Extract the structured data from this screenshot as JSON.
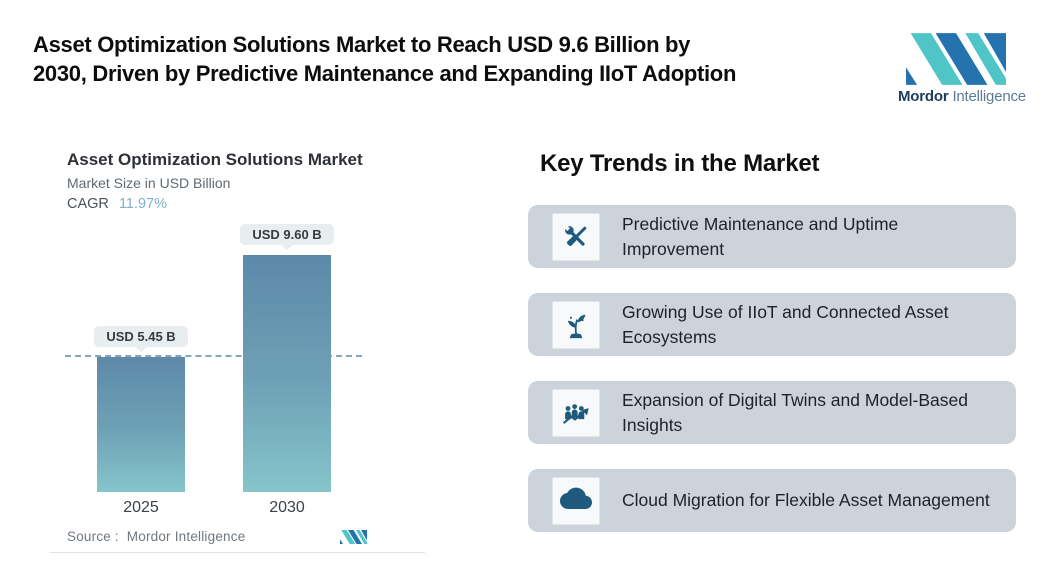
{
  "header": {
    "title_lines": [
      "Asset Optimization Solutions Market to Reach USD 9.6 Billion by",
      "2030, Driven by Predictive Maintenance and Expanding IIoT Adoption"
    ]
  },
  "brand": {
    "name_primary": "Mordor",
    "name_secondary": "Intelligence",
    "logo_icon": "mordor-intelligence-monogram",
    "colors": {
      "blue": "#2473ae",
      "teal": "#4fc5c8"
    }
  },
  "chart_data": {
    "type": "bar",
    "title": "Asset Optimization Solutions Market",
    "subtitle": "Market Size in USD Billion",
    "cagr_label": "CAGR",
    "cagr_value": "11.97%",
    "categories": [
      "2025",
      "2030"
    ],
    "values": [
      5.45,
      9.6
    ],
    "bar_labels": [
      "USD 5.45 B",
      "USD 9.60 B"
    ],
    "unit": "USD Billion",
    "ylim": [
      0,
      9.6
    ],
    "grid": false,
    "legend": "none",
    "reference_line": {
      "value": 5.45,
      "style": "dashed",
      "color": "#87a5ba"
    },
    "bar_gradient_top": "#5d89a9",
    "bar_gradient_bottom": "#85c5cb",
    "source_label": "Source :",
    "source_value": "Mordor Intelligence"
  },
  "trends": {
    "heading": "Key Trends in the Market",
    "card_bg": "#cdd3da",
    "icon_color": "#1d5a7e",
    "items": [
      {
        "icon": "tools-icon",
        "label": "Predictive Maintenance and Uptime Improvement"
      },
      {
        "icon": "sprout-icon",
        "label": "Growing Use of IIoT and Connected Asset Ecosystems"
      },
      {
        "icon": "growth-people-icon",
        "label": "Expansion of Digital Twins and Model-Based Insights"
      },
      {
        "icon": "cloud-icon",
        "label": "Cloud Migration for Flexible Asset Management"
      }
    ]
  }
}
